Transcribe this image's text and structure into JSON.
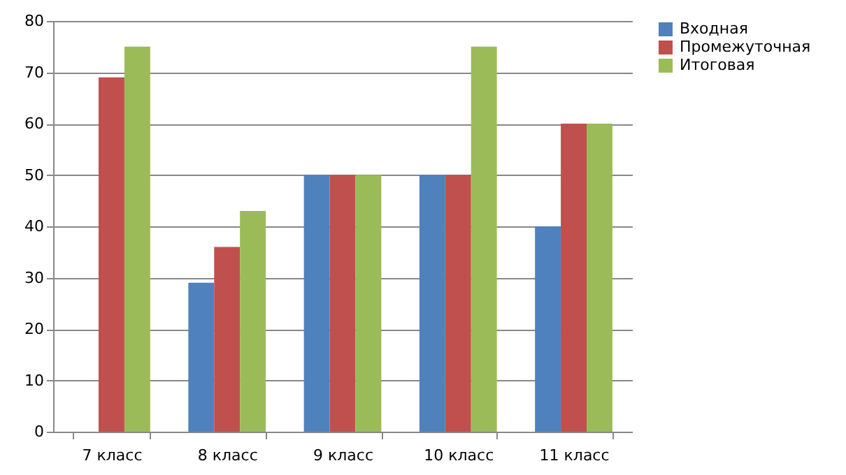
{
  "chart_data": {
    "type": "bar",
    "categories": [
      "7  класс",
      "8 класс",
      "9 класс",
      "10 класс",
      "11 класс"
    ],
    "series": [
      {
        "name": "Входная",
        "color": "#4f81bd",
        "values": [
          null,
          29,
          50,
          50,
          40
        ]
      },
      {
        "name": "Промежуточная",
        "color": "#c0504d",
        "values": [
          69,
          36,
          50,
          50,
          60
        ]
      },
      {
        "name": "Итоговая",
        "color": "#9bbb59",
        "values": [
          75,
          43,
          50,
          75,
          60
        ]
      }
    ],
    "ylim": [
      0,
      80
    ],
    "yticks": [
      0,
      10,
      20,
      30,
      40,
      50,
      60,
      70,
      80
    ],
    "grid": "y",
    "legend": "right"
  }
}
